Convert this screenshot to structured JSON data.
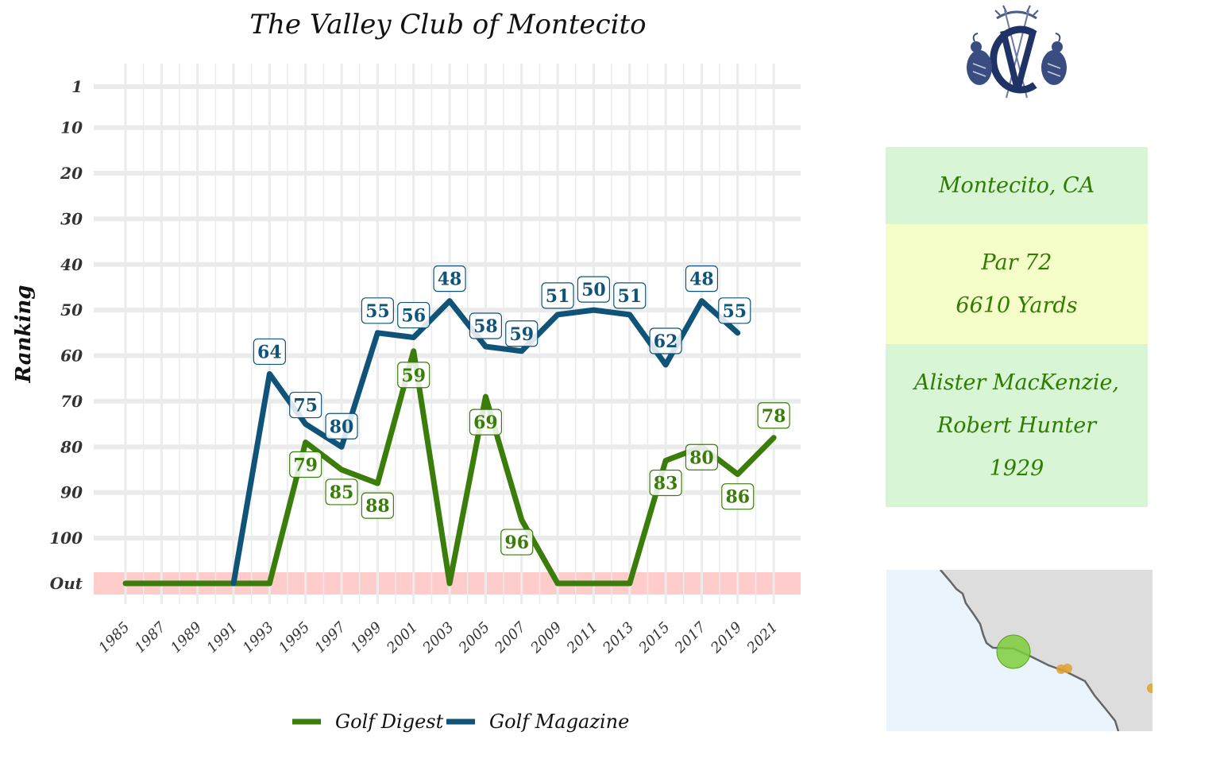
{
  "chart_data": {
    "type": "line",
    "title": "The Valley Club of Montecito",
    "ylabel": "Ranking",
    "xlabel": "",
    "y_reversed": true,
    "y_ticks": [
      "1",
      "10",
      "20",
      "30",
      "40",
      "50",
      "60",
      "70",
      "80",
      "90",
      "100",
      "Out"
    ],
    "x_ticks": [
      "1985",
      "1987",
      "1989",
      "1991",
      "1993",
      "1995",
      "1997",
      "1999",
      "2001",
      "2003",
      "2005",
      "2007",
      "2009",
      "2011",
      "2013",
      "2015",
      "2017",
      "2019",
      "2021"
    ],
    "out_band_color": "#ffcccc",
    "grid": true,
    "legend_position": "bottom",
    "series": [
      {
        "name": "Golf Digest",
        "color": "#3a7d0a",
        "x": [
          1985,
          1987,
          1989,
          1991,
          1993,
          1995,
          1997,
          1999,
          2001,
          2003,
          2005,
          2007,
          2009,
          2011,
          2013,
          2015,
          2017,
          2019,
          2021
        ],
        "y": [
          "Out",
          "Out",
          "Out",
          "Out",
          "Out",
          79,
          85,
          88,
          59,
          "Out",
          69,
          96,
          "Out",
          "Out",
          "Out",
          83,
          80,
          86,
          78
        ],
        "labels": [
          "",
          "",
          "",
          "",
          "",
          "79",
          "85",
          "88",
          "59",
          "",
          "69",
          "96",
          "",
          "",
          "",
          "83",
          "80",
          "86",
          "78"
        ]
      },
      {
        "name": "Golf Magazine",
        "color": "#0f5478",
        "x": [
          1991,
          1993,
          1995,
          1997,
          1999,
          2001,
          2003,
          2005,
          2007,
          2009,
          2011,
          2013,
          2015,
          2017,
          2019
        ],
        "y": [
          "Out",
          64,
          75,
          80,
          55,
          56,
          48,
          58,
          59,
          51,
          50,
          51,
          62,
          48,
          55
        ],
        "labels": [
          "",
          "64",
          "75",
          "80",
          "55",
          "56",
          "48",
          "58",
          "59",
          "51",
          "50",
          "51",
          "62",
          "48",
          "55"
        ]
      }
    ]
  },
  "info": {
    "location": "Montecito, CA",
    "par": "Par 72",
    "yards": "6610 Yards",
    "architect_line1": "Alister MacKenzie,",
    "architect_line2": "Robert Hunter",
    "year": "1929"
  },
  "colors": {
    "box_green": "#d8f5d6",
    "box_yellow": "#f5fdc9",
    "info_text": "#2f7d00",
    "map_ocean": "#eaf4fc",
    "map_land": "#dddddd",
    "map_highlight": "#7cce3c",
    "map_other": "#e0a030"
  },
  "icons": {
    "logo": "club-monogram-logo",
    "map": "california-coast-map"
  }
}
